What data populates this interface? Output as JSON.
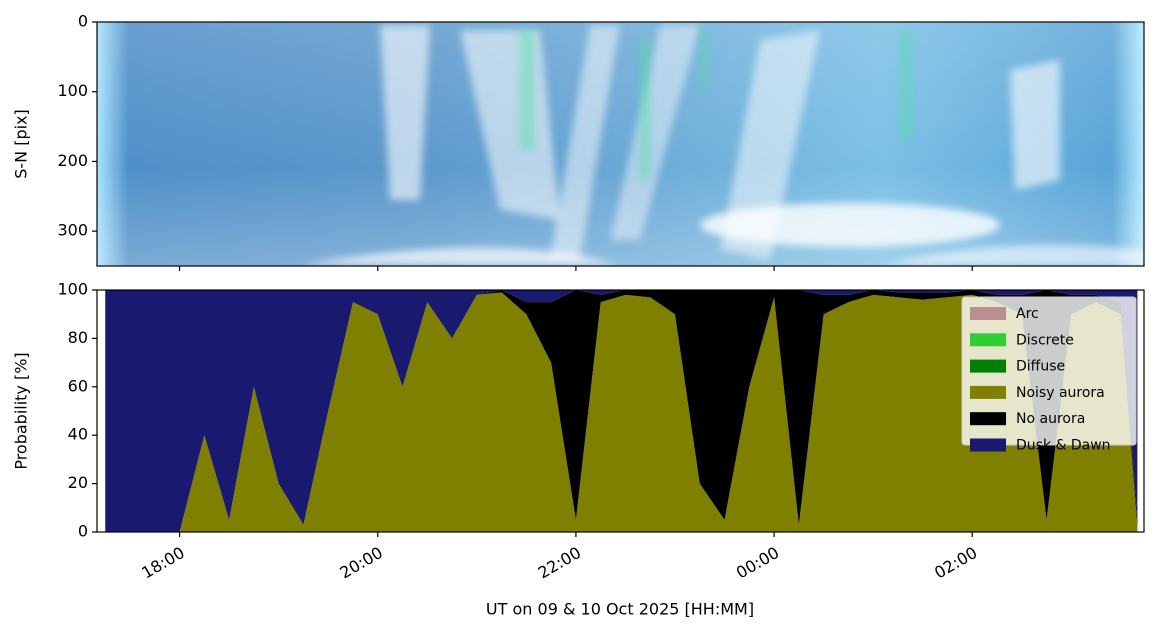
{
  "chart_data": [
    {
      "type": "image",
      "ylabel": "S-N [pix]",
      "ylim": [
        350,
        0
      ],
      "yticks": [
        0,
        100,
        200,
        300
      ]
    },
    {
      "type": "area",
      "ylabel": "Probability [%]",
      "xlabel": "UT on 09 & 10 Oct 2025 [HH:MM]",
      "ylim": [
        0,
        100
      ],
      "yticks": [
        0,
        20,
        40,
        60,
        80,
        100
      ],
      "xlim": [
        "17:10",
        "03:44"
      ],
      "xticks": [
        "18:00",
        "20:00",
        "22:00",
        "00:00",
        "02:00"
      ],
      "legend": "upper right",
      "x": [
        "17:15",
        "17:30",
        "17:45",
        "18:00",
        "18:15",
        "18:30",
        "18:45",
        "19:00",
        "19:15",
        "19:30",
        "19:45",
        "20:00",
        "20:15",
        "20:30",
        "20:45",
        "21:00",
        "21:15",
        "21:30",
        "21:45",
        "22:00",
        "22:15",
        "22:30",
        "22:45",
        "23:00",
        "23:15",
        "23:30",
        "23:45",
        "00:00",
        "00:15",
        "00:30",
        "00:45",
        "01:00",
        "01:15",
        "01:30",
        "01:45",
        "02:00",
        "02:15",
        "02:30",
        "02:45",
        "03:00",
        "03:15",
        "03:30",
        "03:40"
      ],
      "series": [
        {
          "name": "Arc",
          "color": "#bc8f8f",
          "values": [
            0,
            0,
            0,
            0,
            0,
            0,
            0,
            0,
            0,
            0,
            0,
            0,
            0,
            0,
            0,
            0,
            0,
            0,
            0,
            0,
            0,
            0,
            0,
            0,
            0,
            0,
            0,
            0,
            0,
            0,
            0,
            0,
            0,
            0,
            0,
            0,
            0,
            0,
            0,
            0,
            0,
            0,
            0
          ]
        },
        {
          "name": "Discrete",
          "color": "#32cd32",
          "values": [
            0,
            0,
            0,
            0,
            0,
            0,
            0,
            0,
            0,
            0,
            0,
            0,
            0,
            0,
            0,
            0,
            0,
            0,
            0,
            0,
            0,
            0,
            0,
            0,
            0,
            0,
            0,
            0,
            0,
            0,
            0,
            0,
            0,
            0,
            0,
            0,
            0,
            0,
            0,
            0,
            0,
            0,
            0
          ]
        },
        {
          "name": "Diffuse",
          "color": "#008000",
          "values": [
            0,
            0,
            0,
            0,
            0,
            0,
            0,
            0,
            0,
            0,
            0,
            0,
            0,
            0,
            0,
            0,
            0,
            0,
            0,
            0,
            0,
            0,
            0,
            0,
            0,
            0,
            0,
            0,
            0,
            0,
            0,
            0,
            0,
            0,
            0,
            0,
            0,
            0,
            0,
            0,
            0,
            0,
            0
          ]
        },
        {
          "name": "Noisy aurora",
          "color": "#808000",
          "values": [
            0,
            0,
            0,
            0,
            40,
            5,
            60,
            20,
            3,
            50,
            95,
            90,
            60,
            95,
            80,
            98,
            99,
            90,
            70,
            5,
            95,
            98,
            97,
            90,
            20,
            5,
            60,
            97,
            3,
            90,
            95,
            98,
            97,
            96,
            97,
            98,
            95,
            90,
            5,
            90,
            95,
            90,
            2
          ]
        },
        {
          "name": "No aurora",
          "color": "#000000",
          "values": [
            0,
            0,
            0,
            0,
            0,
            0,
            0,
            0,
            0,
            0,
            0,
            0,
            0,
            0,
            0,
            0,
            1,
            5,
            25,
            95,
            3,
            2,
            3,
            10,
            80,
            95,
            40,
            3,
            97,
            8,
            3,
            2,
            2,
            3,
            2,
            2,
            3,
            8,
            95,
            8,
            3,
            5,
            3
          ]
        },
        {
          "name": "Dusk & Dawn",
          "color": "#191970",
          "values": [
            100,
            100,
            100,
            100,
            60,
            95,
            40,
            80,
            97,
            50,
            5,
            10,
            40,
            5,
            20,
            2,
            0,
            5,
            5,
            0,
            2,
            0,
            0,
            0,
            0,
            0,
            0,
            0,
            0,
            2,
            2,
            0,
            1,
            1,
            1,
            0,
            2,
            2,
            0,
            2,
            2,
            5,
            95
          ]
        }
      ]
    }
  ]
}
